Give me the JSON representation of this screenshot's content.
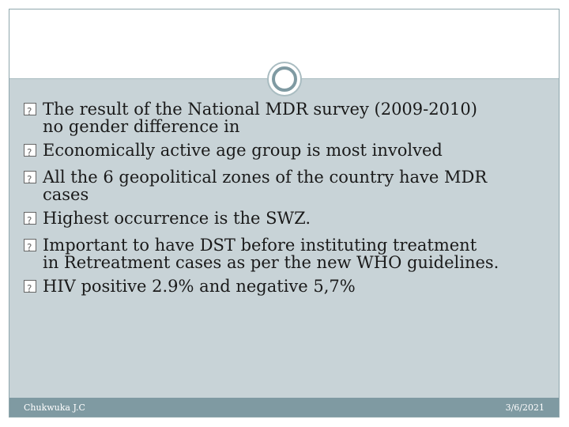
{
  "slide": {
    "bullets": [
      {
        "line1": "The result of the National MDR survey (2009-2010)",
        "line2": "no gender difference in"
      },
      {
        "line1": "Economically active age group is most involved",
        "line2": ""
      },
      {
        "line1": "All the 6 geopolitical zones of the country have MDR",
        "line2": "cases"
      },
      {
        "line1": "Highest occurrence is the SWZ.",
        "line2": ""
      },
      {
        "line1": "Important to have DST before instituting treatment",
        "line2": "in Retreatment cases as per the new WHO guidelines."
      },
      {
        "line1": "HIV positive 2.9% and negative 5,7%",
        "line2": ""
      }
    ],
    "bullet_icon": "missing-glyph-box-icon"
  },
  "footer": {
    "author": "Chukwuka J.C",
    "date": "3/6/2021"
  },
  "colors": {
    "body_background": "#c8d3d7",
    "footer_background": "#7f9aa2",
    "frame_border": "#8fa7ad",
    "text": "#1a1a1a"
  }
}
